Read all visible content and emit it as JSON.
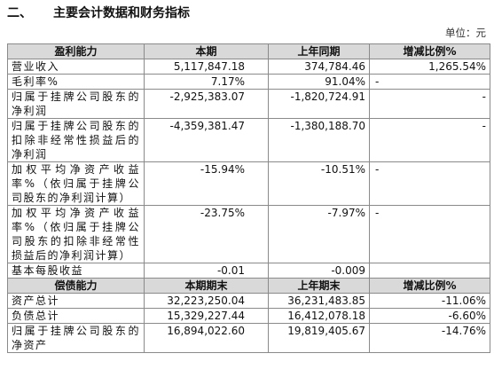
{
  "header": {
    "number": "二、",
    "title": "主要会计数据和财务指标",
    "unit": "单位：元"
  },
  "table": {
    "sections": [
      {
        "header": [
          "盈利能力",
          "本期",
          "上年同期",
          "增减比例%"
        ],
        "rows": [
          [
            "营业收入",
            "5,117,847.18",
            "374,784.46",
            "1,265.54%"
          ],
          [
            "毛利率%",
            "7.17%",
            "91.04%",
            "-"
          ],
          [
            "归属于挂牌公司股东的净利润",
            "-2,925,383.07",
            "-1,820,724.91",
            "-"
          ],
          [
            "归属于挂牌公司股东的扣除非经常性损益后的净利润",
            "-4,359,381.47",
            "-1,380,188.70",
            "-"
          ],
          [
            "加权平均净资产收益率%（依归属于挂牌公司股东的净利润计算）",
            "-15.94%",
            "-10.51%",
            "-"
          ],
          [
            "加权平均净资产收益率%（依归属于挂牌公司股东的扣除非经常性损益后的净利润计算）",
            "-23.75%",
            "-7.97%",
            "-"
          ],
          [
            "基本每股收益",
            "-0.01",
            "-0.009"
          ]
        ]
      },
      {
        "header": [
          "偿债能力",
          "本期期末",
          "上年期末",
          "增减比例%"
        ],
        "rows": [
          [
            "资产总计",
            "32,223,250.04",
            "36,231,483.85",
            "-11.06%"
          ],
          [
            "负债总计",
            "15,329,227.44",
            "16,412,078.18",
            "-6.60%"
          ],
          [
            "归属于挂牌公司股东的净资产",
            "16,894,022.60",
            "19,819,405.67",
            "-14.76%"
          ]
        ]
      }
    ]
  }
}
